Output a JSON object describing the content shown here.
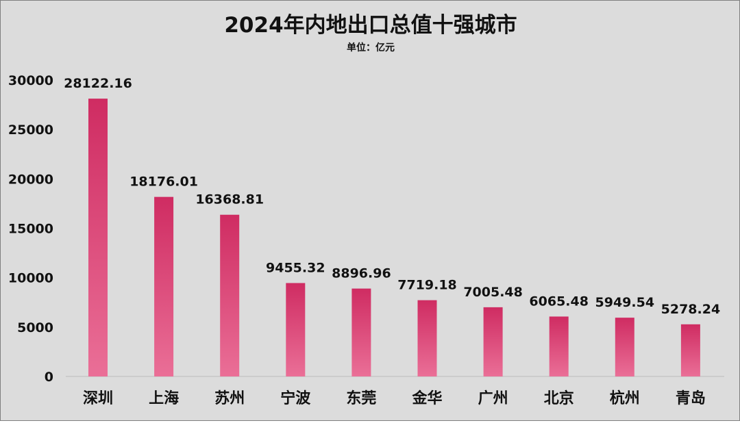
{
  "chart_data": {
    "type": "bar",
    "title": "2024年内地出口总值十强城市",
    "subtitle": "单位：亿元",
    "categories": [
      "深圳",
      "上海",
      "苏州",
      "宁波",
      "东莞",
      "金华",
      "广州",
      "北京",
      "杭州",
      "青岛"
    ],
    "values": [
      28122.16,
      18176.01,
      16368.81,
      9455.32,
      8896.96,
      7719.18,
      7005.48,
      6065.48,
      5949.54,
      5278.24
    ],
    "data_labels": [
      "28122.16",
      "18176.01",
      "16368.81",
      "9455.32",
      "8896.96",
      "7719.18",
      "7005.48",
      "6065.48",
      "5949.54",
      "5278.24"
    ],
    "yticks": [
      "0",
      "5000",
      "10000",
      "15000",
      "20000",
      "25000",
      "30000"
    ],
    "ylim": [
      0,
      30000
    ],
    "xlabel": "",
    "ylabel": "",
    "grid": false,
    "legend": "none",
    "colors": {
      "background": "#dcdcdc",
      "bar_top": "#cf2c62",
      "bar_bottom": "#ea6f97",
      "text": "#111111",
      "axis": "#bdbdbd"
    }
  }
}
